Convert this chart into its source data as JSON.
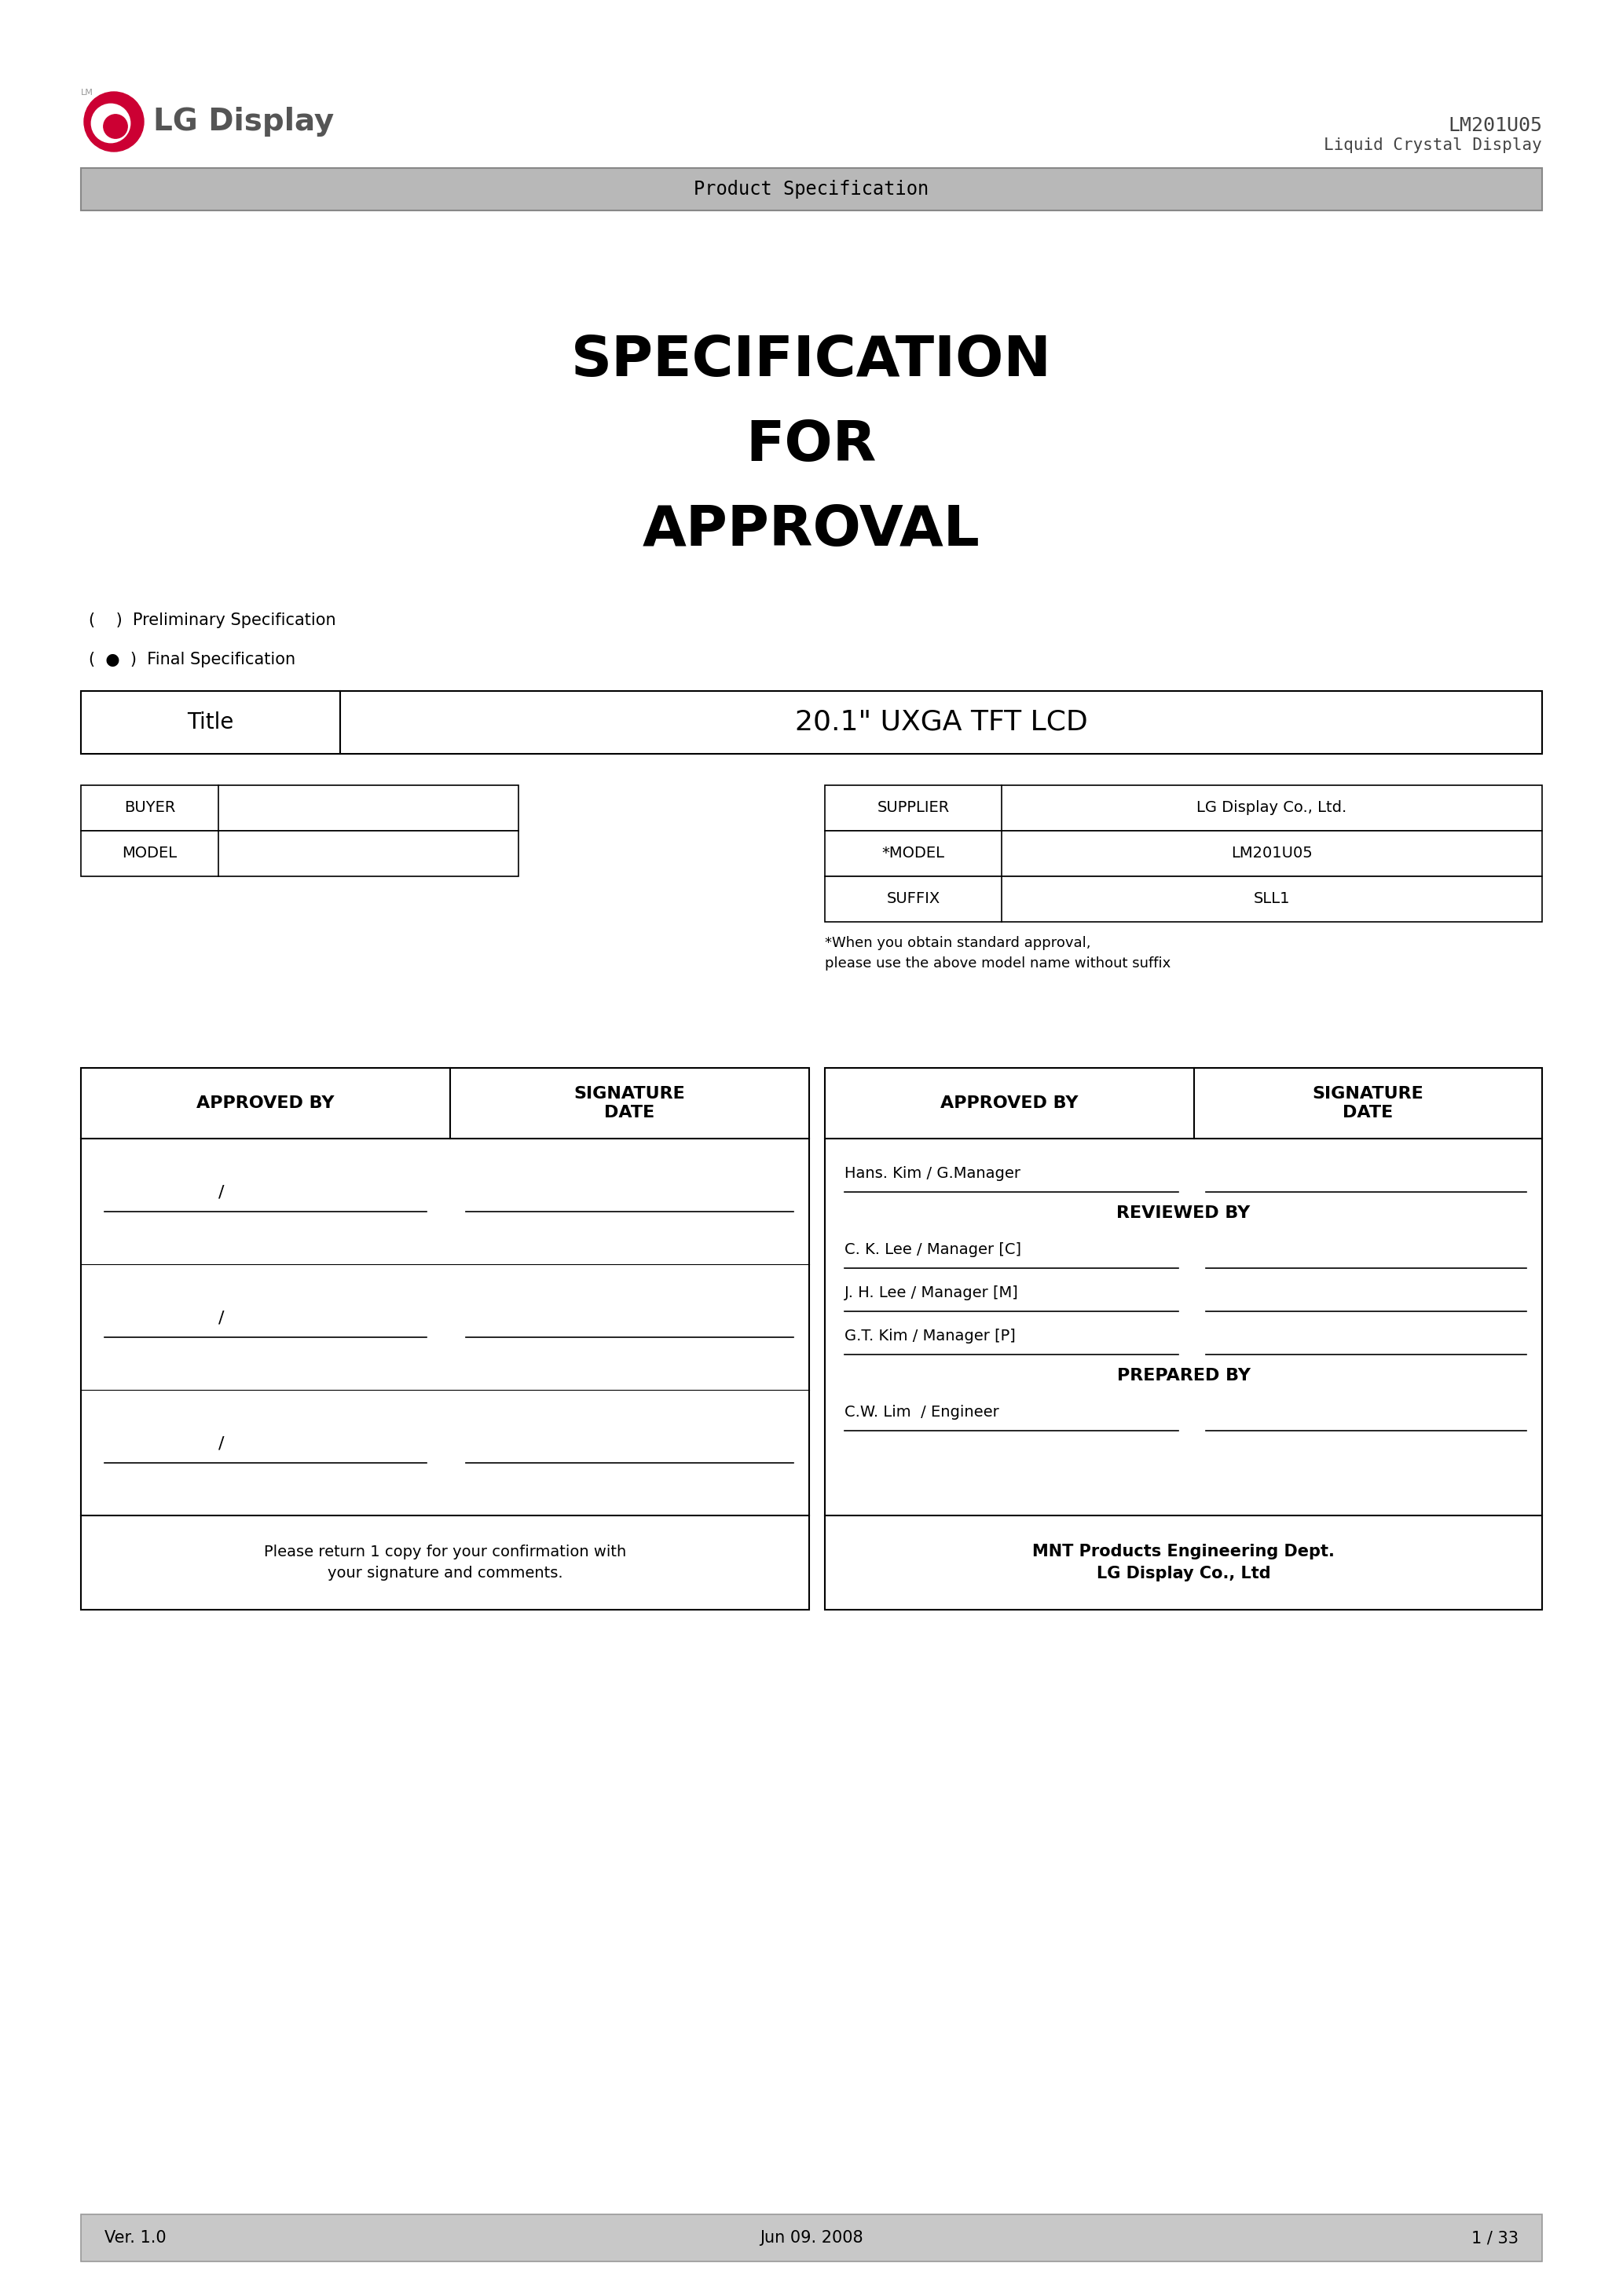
{
  "bg_color": "#ffffff",
  "page_width": 20.66,
  "page_height": 29.24,
  "header": {
    "logo_color": "#cc0033",
    "logo_text_color": "#555555",
    "model_line1": "LM201U05",
    "model_line2": "Liquid Crystal Display",
    "model_color": "#444444",
    "banner_text": "Product Specification",
    "banner_bg": "#b8b8b8",
    "banner_text_color": "#000000"
  },
  "title_lines": [
    "SPECIFICATION",
    "FOR",
    "APPROVAL"
  ],
  "title_row": {
    "label": "Title",
    "value": "20.1\" UXGA TFT LCD"
  },
  "left_table": {
    "rows": [
      [
        "BUYER",
        ""
      ],
      [
        "MODEL",
        ""
      ]
    ]
  },
  "right_table": {
    "rows": [
      [
        "SUPPLIER",
        "LG Display Co., Ltd."
      ],
      [
        "*MODEL",
        "LM201U05"
      ],
      [
        "SUFFIX",
        "SLL1"
      ]
    ],
    "footnote": "*When you obtain standard approval,\nplease use the above model name without suffix"
  },
  "approval_left": {
    "title1": "APPROVED BY",
    "title2": "SIGNATURE\nDATE",
    "footer": "Please return 1 copy for your confirmation with\nyour signature and comments."
  },
  "approval_right": {
    "approved_by": "Hans. Kim / G.Manager",
    "reviewed_by_label": "REVIEWED BY",
    "reviewed_by": [
      "C. K. Lee / Manager [C]",
      "J. H. Lee / Manager [M]",
      "G.T. Kim / Manager [P]"
    ],
    "prepared_by_label": "PREPARED BY",
    "prepared_by": "C.W. Lim  / Engineer",
    "footer1": "MNT Products Engineering Dept.",
    "footer2": "LG Display Co., Ltd"
  },
  "footer": {
    "ver": "Ver. 1.0",
    "date": "Jun 09. 2008",
    "page": "1 / 33",
    "bg": "#c8c8c8"
  }
}
